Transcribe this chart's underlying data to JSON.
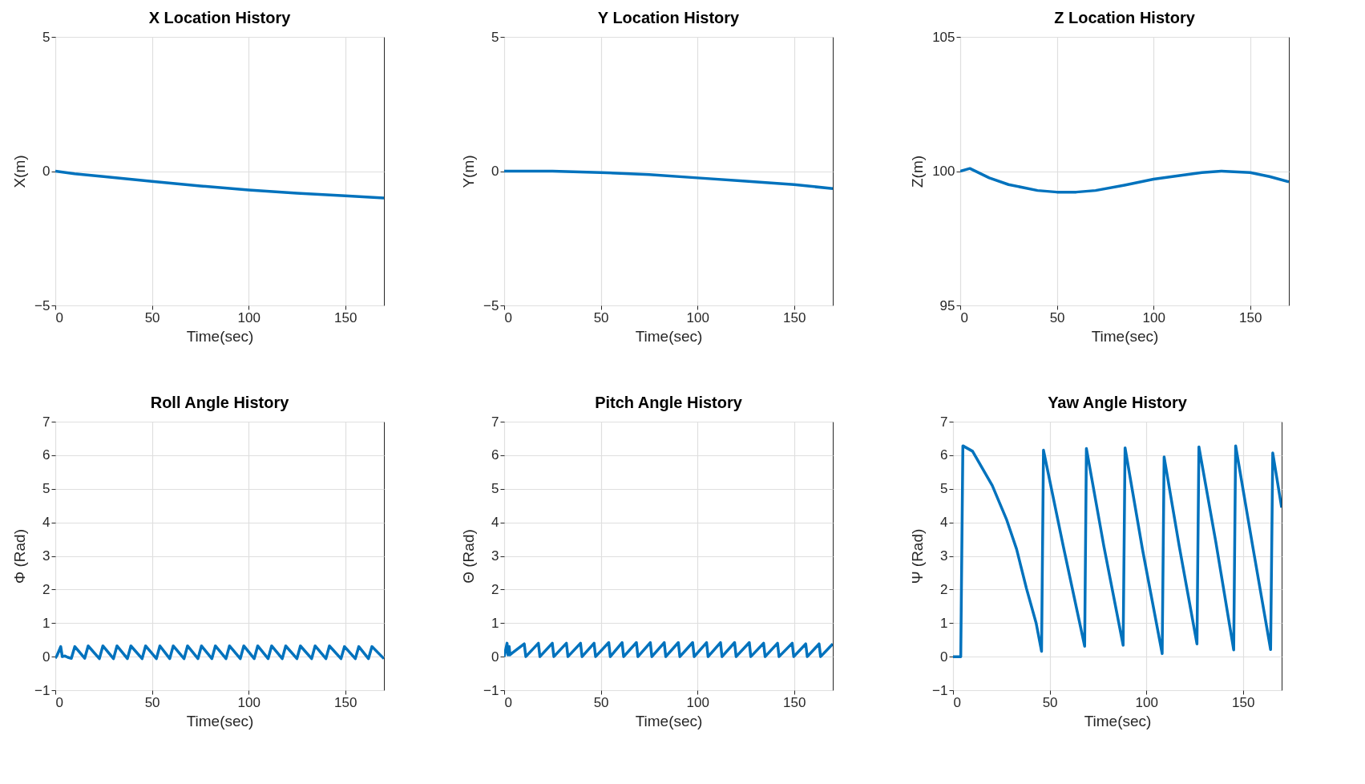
{
  "chart_data": [
    {
      "type": "line",
      "title": "X Location History",
      "xlabel": "Time(sec)",
      "ylabel": "X(m)",
      "x": [
        0,
        10,
        25,
        50,
        75,
        100,
        125,
        150,
        170
      ],
      "series": [
        {
          "color": "#0072bd",
          "values": [
            0,
            -0.1,
            -0.2,
            -0.38,
            -0.55,
            -0.7,
            -0.82,
            -0.92,
            -1.0
          ]
        }
      ],
      "xlim": [
        0,
        170
      ],
      "ylim": [
        -5,
        5
      ],
      "xticks": [
        0,
        50,
        100,
        150
      ],
      "yticks": [
        -5,
        0,
        5
      ],
      "grid": true
    },
    {
      "type": "line",
      "title": "Y Location History",
      "xlabel": "Time(sec)",
      "ylabel": "Y(m)",
      "x": [
        0,
        25,
        50,
        75,
        100,
        125,
        150,
        170
      ],
      "series": [
        {
          "color": "#0072bd",
          "values": [
            0,
            0,
            -0.05,
            -0.13,
            -0.25,
            -0.37,
            -0.5,
            -0.65
          ]
        }
      ],
      "xlim": [
        0,
        170
      ],
      "ylim": [
        -5,
        5
      ],
      "xticks": [
        0,
        50,
        100,
        150
      ],
      "yticks": [
        -5,
        0,
        5
      ],
      "grid": true
    },
    {
      "type": "line",
      "title": "Z Location History",
      "xlabel": "Time(sec)",
      "ylabel": "Z(m)",
      "x": [
        0,
        5,
        15,
        25,
        40,
        50,
        60,
        70,
        85,
        100,
        115,
        125,
        135,
        150,
        160,
        170
      ],
      "series": [
        {
          "color": "#0072bd",
          "values": [
            100,
            100.1,
            99.75,
            99.5,
            99.28,
            99.22,
            99.22,
            99.28,
            99.48,
            99.7,
            99.85,
            99.95,
            100,
            99.95,
            99.8,
            99.6
          ]
        }
      ],
      "xlim": [
        0,
        170
      ],
      "ylim": [
        95,
        105
      ],
      "xticks": [
        0,
        50,
        100,
        150
      ],
      "yticks": [
        95,
        100,
        105
      ],
      "grid": true
    },
    {
      "type": "line",
      "title": "Roll Angle History",
      "xlabel": "Time(sec)",
      "ylabel": "Φ (Rad)",
      "x": [
        0,
        1,
        2.8,
        3.6,
        5,
        6.5,
        8.3,
        10.1,
        15.2,
        17.0,
        22.8,
        24.6,
        30.1,
        31.9,
        37.3,
        39.1,
        44.9,
        46.7,
        52.3,
        54.1,
        59.2,
        61.0,
        66.6,
        68.4,
        73.8,
        75.6,
        81.0,
        82.8,
        88.3,
        90.1,
        95.7,
        97.5,
        102.9,
        104.7,
        110.1,
        111.9,
        117.4,
        119.2,
        125.0,
        126.8,
        132.6,
        134.4,
        140.0,
        141.8,
        147.8,
        149.6,
        155.2,
        157.0,
        162.0,
        163.8,
        170
      ],
      "series": [
        {
          "color": "#0072bd",
          "values": [
            -0.05,
            0.05,
            0.3,
            0.0,
            0.02,
            -0.02,
            -0.05,
            0.3,
            -0.05,
            0.32,
            -0.06,
            0.32,
            -0.06,
            0.32,
            -0.06,
            0.32,
            -0.06,
            0.32,
            -0.06,
            0.32,
            -0.06,
            0.32,
            -0.06,
            0.32,
            -0.06,
            0.32,
            -0.06,
            0.32,
            -0.06,
            0.32,
            -0.06,
            0.32,
            -0.06,
            0.32,
            -0.06,
            0.32,
            -0.06,
            0.32,
            -0.06,
            0.32,
            -0.06,
            0.32,
            -0.06,
            0.32,
            -0.06,
            0.3,
            -0.06,
            0.3,
            -0.06,
            0.3,
            -0.06
          ]
        }
      ],
      "xlim": [
        0,
        170
      ],
      "ylim": [
        -1,
        7
      ],
      "xticks": [
        0,
        50,
        100,
        150
      ],
      "yticks": [
        -1,
        0,
        1,
        2,
        3,
        4,
        5,
        6,
        7
      ],
      "grid": true
    },
    {
      "type": "line",
      "title": "Pitch Angle History",
      "xlabel": "Time(sec)",
      "ylabel": "Θ (Rad)",
      "x": [
        0,
        1.5,
        2,
        2.6,
        3,
        4,
        10.4,
        11.2,
        17.7,
        18.5,
        24.9,
        25.7,
        32.2,
        33.0,
        39.5,
        40.3,
        46.5,
        47.3,
        54.1,
        54.9,
        61.0,
        61.8,
        68.4,
        69.2,
        75.6,
        76.4,
        82.8,
        83.6,
        90.1,
        90.9,
        97.5,
        98.3,
        104.7,
        105.5,
        111.9,
        112.7,
        119.2,
        120.0,
        126.8,
        127.6,
        134.2,
        135.0,
        141.4,
        142.2,
        149.0,
        149.8,
        156.0,
        156.8,
        162.9,
        163.7,
        170
      ],
      "series": [
        {
          "color": "#0072bd",
          "values": [
            0,
            0.4,
            0.05,
            0.3,
            0.05,
            0.1,
            0.38,
            0,
            0.4,
            0,
            0.4,
            0,
            0.4,
            0,
            0.4,
            0,
            0.4,
            0,
            0.42,
            0,
            0.42,
            0,
            0.42,
            0,
            0.42,
            0,
            0.42,
            0,
            0.42,
            0,
            0.42,
            0,
            0.42,
            0,
            0.42,
            0,
            0.42,
            0,
            0.42,
            0,
            0.4,
            0,
            0.4,
            0,
            0.4,
            0,
            0.38,
            0,
            0.38,
            0,
            0.38
          ]
        }
      ],
      "xlim": [
        0,
        170
      ],
      "ylim": [
        -1,
        7
      ],
      "xticks": [
        0,
        50,
        100,
        150
      ],
      "yticks": [
        -1,
        0,
        1,
        2,
        3,
        4,
        5,
        6,
        7
      ],
      "grid": true
    },
    {
      "type": "line",
      "title": "Yaw Angle History",
      "xlabel": "Time(sec)",
      "ylabel": "Ψ (Rad)",
      "x": [
        0,
        4.0,
        5.1,
        10.1,
        20.3,
        27.8,
        32.9,
        38,
        43,
        45.8,
        46.8,
        57,
        68.1,
        69,
        78,
        88,
        89,
        98,
        108.2,
        109.2,
        117,
        126.2,
        127.2,
        136,
        145.2,
        146.2,
        155,
        164.3,
        165.4,
        170
      ],
      "series": [
        {
          "color": "#0072bd",
          "values": [
            0,
            0,
            6.28,
            6.12,
            5.1,
            4.07,
            3.2,
            2.03,
            1.0,
            0.16,
            6.15,
            3.3,
            0.31,
            6.2,
            3.3,
            0.34,
            6.22,
            3.2,
            0.09,
            5.95,
            3.3,
            0.38,
            6.25,
            3.4,
            0.2,
            6.28,
            3.3,
            0.21,
            6.07,
            4.44
          ]
        }
      ],
      "xlim": [
        0,
        170
      ],
      "ylim": [
        -1,
        7
      ],
      "xticks": [
        0,
        50,
        100,
        150
      ],
      "yticks": [
        -1,
        0,
        1,
        2,
        3,
        4,
        5,
        6,
        7
      ],
      "grid": true
    }
  ]
}
